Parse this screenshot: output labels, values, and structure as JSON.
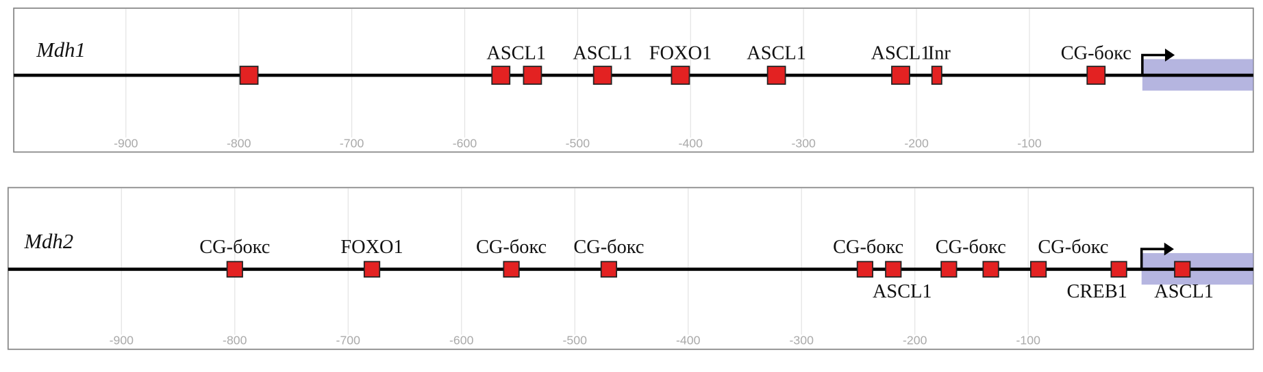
{
  "panels": [
    {
      "gene": "Mdh1",
      "ticks": [
        -900,
        -800,
        -700,
        -600,
        -500,
        -400,
        -300,
        -200,
        -100
      ],
      "sites": [
        {
          "position": -791
        },
        {
          "position": -568,
          "label": "ASCL1"
        },
        {
          "position": -540
        },
        {
          "position": -478,
          "label": "ASCL1"
        },
        {
          "position": -409,
          "label": "FOXO1"
        },
        {
          "position": -324,
          "label": "ASCL1"
        },
        {
          "position": -214,
          "label": "ASCL1"
        },
        {
          "position": -182,
          "label": "Inr"
        },
        {
          "position": -41,
          "label": "CG-бокс"
        }
      ]
    },
    {
      "gene": "Mdh2",
      "ticks": [
        -900,
        -800,
        -700,
        -600,
        -500,
        -400,
        -300,
        -200,
        -100
      ],
      "sites": [
        {
          "position": -800,
          "label": "CG-бокс"
        },
        {
          "position": -679,
          "label": "FOXO1"
        },
        {
          "position": -556,
          "label": "CG-бокс"
        },
        {
          "position": -470,
          "label": "CG-бокс"
        },
        {
          "position": -244,
          "label": "CG-бокс"
        },
        {
          "position": -219,
          "label": "ASCL1"
        },
        {
          "position": -170,
          "label": "CG-бокс"
        },
        {
          "position": -133
        },
        {
          "position": -91,
          "label": "CG-бокс"
        },
        {
          "position": -20,
          "label": "CREB1"
        },
        {
          "position": 36,
          "label": "ASCL1"
        }
      ]
    }
  ]
}
